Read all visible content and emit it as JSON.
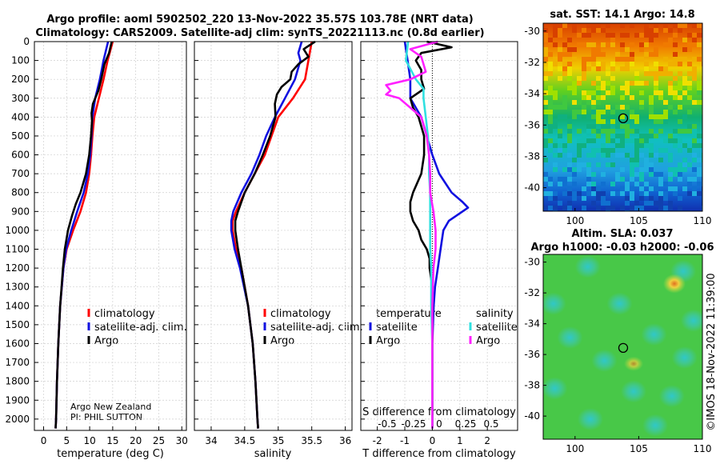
{
  "header": {
    "line1": "Argo profile: aoml 5902502_220 13-Nov-2022 35.57S 103.78E (NRT data)",
    "line2": "Climatology: CARS2009. Satellite-adj clim: synTS_20221113.nc (0.8d earlier)"
  },
  "colors": {
    "climatology": "#ff0000",
    "satellite": "#1010e0",
    "argo": "#000000",
    "sat_salinity": "#30e0e0",
    "argo_salinity": "#ff20ff"
  },
  "credit": {
    "line1": "Argo New Zealand",
    "line2": "PI: PHIL SUTTON"
  },
  "copyright": "©IMOS 18-Nov-2022 11:39:00",
  "chart_data": [
    {
      "type": "line",
      "name": "temperature",
      "xlabel": "temperature (deg C)",
      "xlim": [
        -2,
        31
      ],
      "ylim": [
        2060,
        0
      ],
      "xticks": [
        0,
        5,
        10,
        15,
        20,
        25,
        30
      ],
      "yticks": [
        0,
        100,
        200,
        300,
        400,
        500,
        600,
        700,
        800,
        900,
        1000,
        1100,
        1200,
        1300,
        1400,
        1500,
        1600,
        1700,
        1800,
        1900,
        2000
      ],
      "legend": [
        "climatology",
        "satellite-adj. clim.",
        "Argo"
      ],
      "series": [
        {
          "name": "climatology",
          "color": "#ff0000",
          "depth": [
            0,
            100,
            200,
            300,
            400,
            500,
            600,
            700,
            800,
            900,
            1000,
            1100,
            1200,
            1400,
            1600,
            1800,
            2000,
            2050
          ],
          "values": [
            15.0,
            13.9,
            13.0,
            12.0,
            11.0,
            10.6,
            10.3,
            9.9,
            9.2,
            8.0,
            6.4,
            5.0,
            4.3,
            3.6,
            3.2,
            2.9,
            2.7,
            2.6
          ]
        },
        {
          "name": "satellite-adj. clim.",
          "color": "#1010e0",
          "depth": [
            0,
            100,
            200,
            300,
            400,
            500,
            600,
            700,
            800,
            900,
            1000,
            1100,
            1200,
            1400,
            1600,
            1800,
            2000,
            2050
          ],
          "values": [
            14.0,
            13.0,
            12.2,
            11.2,
            10.6,
            10.4,
            10.1,
            9.6,
            8.7,
            7.3,
            6.0,
            4.9,
            4.3,
            3.6,
            3.2,
            2.9,
            2.7,
            2.6
          ]
        },
        {
          "name": "Argo",
          "color": "#000000",
          "depth": [
            0,
            60,
            120,
            200,
            260,
            330,
            380,
            420,
            500,
            600,
            700,
            800,
            860,
            920,
            1000,
            1100,
            1200,
            1400,
            1600,
            1800,
            2000,
            2050
          ],
          "values": [
            14.8,
            14.2,
            13.2,
            12.5,
            11.9,
            10.7,
            10.4,
            10.5,
            10.3,
            9.9,
            9.2,
            8.0,
            7.0,
            6.2,
            5.3,
            4.6,
            4.2,
            3.6,
            3.2,
            2.9,
            2.7,
            2.6
          ]
        }
      ]
    },
    {
      "type": "line",
      "name": "salinity",
      "xlabel": "salinity",
      "xlim": [
        33.75,
        36.1
      ],
      "ylim": [
        2060,
        0
      ],
      "xticks": [
        34,
        34.5,
        35,
        35.5,
        36
      ],
      "legend": [
        "climatology",
        "satellite-adj. clim.",
        "Argo"
      ],
      "series": [
        {
          "name": "climatology",
          "color": "#ff0000",
          "depth": [
            0,
            100,
            200,
            300,
            400,
            500,
            600,
            700,
            800,
            900,
            950,
            1000,
            1100,
            1200,
            1400,
            1600,
            1800,
            2000,
            2050
          ],
          "values": [
            35.5,
            35.45,
            35.4,
            35.22,
            35.0,
            34.9,
            34.8,
            34.65,
            34.5,
            34.37,
            34.32,
            34.32,
            34.37,
            34.45,
            34.55,
            34.62,
            34.66,
            34.69,
            34.7
          ]
        },
        {
          "name": "satellite-adj. clim.",
          "color": "#1010e0",
          "depth": [
            0,
            60,
            100,
            200,
            300,
            400,
            500,
            600,
            700,
            800,
            900,
            950,
            1000,
            1100,
            1200,
            1400,
            1600,
            1800,
            2000,
            2050
          ],
          "values": [
            35.35,
            35.3,
            35.33,
            35.25,
            35.1,
            34.95,
            34.82,
            34.72,
            34.6,
            34.45,
            34.33,
            34.3,
            34.3,
            34.35,
            34.43,
            34.55,
            34.62,
            34.66,
            34.69,
            34.7
          ]
        },
        {
          "name": "Argo",
          "color": "#000000",
          "depth": [
            0,
            40,
            80,
            120,
            160,
            200,
            240,
            280,
            330,
            400,
            500,
            600,
            700,
            800,
            900,
            950,
            1000,
            1100,
            1200,
            1400,
            1600,
            1800,
            2000,
            2050
          ],
          "values": [
            35.55,
            35.38,
            35.45,
            35.3,
            35.2,
            35.18,
            35.05,
            34.98,
            34.95,
            34.96,
            34.88,
            34.77,
            34.65,
            34.5,
            34.4,
            34.36,
            34.36,
            34.4,
            34.45,
            34.55,
            34.62,
            34.66,
            34.69,
            34.7
          ]
        }
      ]
    },
    {
      "type": "line",
      "name": "difference",
      "xlabel": "T difference from climatology",
      "xlim": [
        -2.6,
        3.1
      ],
      "ylim": [
        2060,
        0
      ],
      "xticks": [
        -2,
        -1,
        0,
        1,
        2
      ],
      "top_label": "S difference from climatology",
      "top_ticks": [
        "-0.5",
        "-0.25",
        "0",
        "0.25",
        "0.5"
      ],
      "legend_temperature": {
        "title": "temperature",
        "items": [
          "satellite",
          "Argo"
        ]
      },
      "legend_salinity": {
        "title": "salinity",
        "items": [
          "satellite",
          "Argo"
        ]
      },
      "series": [
        {
          "name": "T satellite",
          "color": "#1010e0",
          "depth": [
            0,
            100,
            200,
            300,
            400,
            500,
            600,
            700,
            800,
            850,
            880,
            900,
            950,
            1000,
            1100,
            1200,
            1300,
            1400,
            1600,
            1800,
            2000,
            2050
          ],
          "values": [
            -1.0,
            -0.9,
            -0.8,
            -0.8,
            -0.4,
            -0.2,
            0.0,
            0.25,
            0.7,
            1.1,
            1.3,
            1.1,
            0.6,
            0.4,
            0.3,
            0.2,
            0.1,
            0.05,
            0.0,
            0.0,
            0.0,
            0.0
          ]
        },
        {
          "name": "T Argo",
          "color": "#000000",
          "depth": [
            0,
            30,
            60,
            100,
            150,
            200,
            250,
            300,
            350,
            400,
            500,
            600,
            700,
            800,
            850,
            900,
            950,
            1000,
            1050,
            1100,
            1150,
            1200,
            1300,
            1400,
            1600,
            1800,
            2000,
            2050
          ],
          "values": [
            -0.2,
            0.7,
            -0.4,
            -0.6,
            -0.4,
            -0.4,
            -0.3,
            -0.8,
            -0.7,
            -0.5,
            -0.3,
            -0.3,
            -0.4,
            -0.7,
            -0.8,
            -0.8,
            -0.7,
            -0.5,
            -0.4,
            -0.2,
            -0.1,
            -0.1,
            0.0,
            0.0,
            0.0,
            0.0,
            0.0,
            0.0
          ]
        },
        {
          "name": "S satellite",
          "color": "#30e0e0",
          "depth": [
            0,
            100,
            200,
            250,
            300,
            400,
            500,
            600,
            700,
            800,
            900,
            1000,
            1100,
            1200,
            1400,
            1600,
            1800,
            2000,
            2050
          ],
          "values": [
            -0.22,
            -0.24,
            -0.15,
            -0.08,
            -0.08,
            -0.06,
            -0.04,
            -0.03,
            -0.03,
            -0.02,
            -0.02,
            -0.02,
            -0.02,
            -0.01,
            -0.01,
            0.0,
            0.0,
            0.0,
            0.0
          ]
        },
        {
          "name": "S Argo",
          "color": "#ff20ff",
          "depth": [
            0,
            40,
            80,
            120,
            160,
            200,
            230,
            260,
            280,
            300,
            400,
            500,
            600,
            700,
            800,
            900,
            1000,
            1100,
            1200,
            1400,
            1600,
            1800,
            2000,
            2050
          ],
          "values": [
            0.05,
            -0.2,
            -0.1,
            -0.08,
            -0.06,
            -0.2,
            -0.42,
            -0.38,
            -0.42,
            -0.3,
            -0.1,
            -0.05,
            -0.03,
            -0.02,
            -0.02,
            0.01,
            0.03,
            0.03,
            0.01,
            0.0,
            0.0,
            0.0,
            0.0,
            0.0
          ]
        }
      ]
    },
    {
      "type": "heatmap",
      "name": "sst_map",
      "title": "sat. SST: 14.1 Argo: 14.8",
      "xlim": [
        97.5,
        110
      ],
      "ylim": [
        -41.5,
        -29.5
      ],
      "xticks": [
        100,
        105,
        110
      ],
      "yticks": [
        -30,
        -32,
        -34,
        -36,
        -38,
        -40
      ],
      "marker": {
        "lon": 103.78,
        "lat": -35.57
      }
    },
    {
      "type": "heatmap",
      "name": "sla_map",
      "title_line1": "Altim. SLA: 0.037",
      "title_line2": "Argo h1000: -0.03 h2000: -0.06",
      "xlim": [
        97.5,
        110
      ],
      "ylim": [
        -41.5,
        -29.5
      ],
      "xticks": [
        100,
        105,
        110
      ],
      "yticks": [
        -30,
        -32,
        -34,
        -36,
        -38,
        -40
      ],
      "marker": {
        "lon": 103.78,
        "lat": -35.57
      }
    }
  ]
}
